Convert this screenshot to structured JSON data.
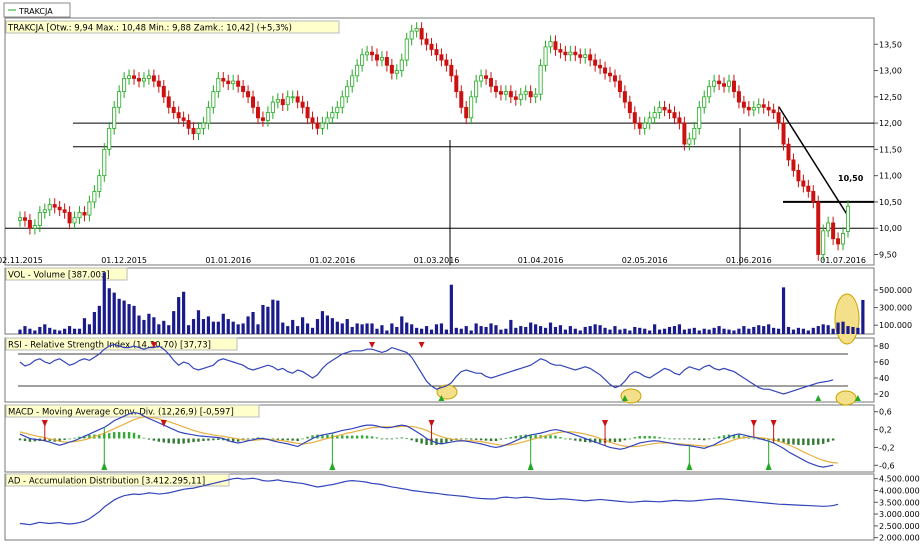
{
  "legend": {
    "label": "TRAKCJA"
  },
  "panels": {
    "price": {
      "title": "TRAKCJA [Otw.: 9,94  Max.: 10,48  Min.: 9,88  Zamk.: 10,42] (+5,3%)"
    },
    "volume": {
      "title": "VOL - Volume [387.003]"
    },
    "rsi": {
      "title": "RSI - Relative Strength Index (14,30,70) [37,73]"
    },
    "macd": {
      "title": "MACD - Moving Average Conv. Div. (12,26,9) [-0,597]"
    },
    "ad": {
      "title": "AD - Accumulation Distribution [3.412.295,11]"
    }
  },
  "annotation": {
    "price_label": "10,50"
  },
  "colors": {
    "up": "#22aa22",
    "down": "#cc1111",
    "volume": "#1a1a8c",
    "line": "#3344bb",
    "signal": "#e8b040",
    "highlight": "#f4e08a",
    "grid": "#cccccc"
  },
  "chart_data": [
    {
      "type": "candlestick",
      "name": "price",
      "x_ticks": [
        "02.11.2015",
        "01.12.2015",
        "01.01.2016",
        "01.02.2016",
        "01.03.2016",
        "01.04.2016",
        "02.05.2016",
        "01.06.2016",
        "01.07.2016"
      ],
      "y_ticks": [
        "9,50",
        "10,00",
        "10,50",
        "11,00",
        "11,50",
        "12,00",
        "12,50",
        "13,00",
        "13,50"
      ],
      "ylim": [
        9.3,
        14.0
      ],
      "horizontal_lines": [
        10.0,
        10.5,
        11.55,
        12.0
      ],
      "last": {
        "open": 9.94,
        "high": 10.48,
        "low": 9.88,
        "close": 10.42,
        "change": "+5,3%"
      },
      "closes": [
        10.2,
        10.15,
        10.0,
        10.05,
        10.3,
        10.35,
        10.45,
        10.4,
        10.35,
        10.3,
        10.1,
        10.2,
        10.3,
        10.25,
        10.5,
        10.7,
        11.0,
        11.5,
        11.9,
        12.3,
        12.6,
        12.85,
        12.9,
        12.85,
        12.8,
        12.85,
        12.9,
        12.8,
        12.7,
        12.5,
        12.3,
        12.2,
        12.1,
        12.05,
        11.9,
        11.8,
        11.9,
        12.0,
        12.3,
        12.6,
        12.85,
        12.8,
        12.75,
        12.8,
        12.7,
        12.6,
        12.5,
        12.3,
        12.1,
        12.05,
        12.2,
        12.4,
        12.45,
        12.35,
        12.5,
        12.5,
        12.4,
        12.3,
        12.1,
        12.0,
        11.9,
        12.0,
        12.1,
        12.2,
        12.3,
        12.5,
        12.7,
        12.9,
        13.1,
        13.3,
        13.35,
        13.3,
        13.2,
        13.25,
        13.1,
        12.95,
        13.0,
        13.2,
        13.6,
        13.75,
        13.8,
        13.6,
        13.5,
        13.4,
        13.3,
        13.2,
        13.1,
        12.9,
        12.6,
        12.3,
        12.1,
        12.5,
        12.8,
        12.9,
        12.85,
        12.7,
        12.6,
        12.55,
        12.6,
        12.5,
        12.45,
        12.55,
        12.6,
        12.5,
        12.55,
        13.1,
        13.45,
        13.55,
        13.4,
        13.35,
        13.3,
        13.35,
        13.3,
        13.25,
        13.3,
        13.2,
        13.1,
        13.05,
        12.95,
        12.9,
        12.8,
        12.6,
        12.4,
        12.2,
        12.0,
        11.9,
        12.0,
        12.1,
        12.2,
        12.3,
        12.25,
        12.2,
        12.1,
        12.0,
        11.6,
        11.7,
        11.9,
        12.3,
        12.5,
        12.7,
        12.8,
        12.75,
        12.7,
        12.8,
        12.6,
        12.4,
        12.3,
        12.25,
        12.3,
        12.35,
        12.3,
        12.25,
        12.2,
        12.0,
        11.6,
        11.3,
        11.1,
        10.9,
        10.8,
        10.7,
        10.5,
        9.5,
        9.95,
        10.1,
        9.8,
        9.7,
        9.9,
        10.42
      ]
    },
    {
      "type": "bar",
      "name": "volume",
      "y_ticks": [
        "100.000",
        "300.000",
        "500.000"
      ],
      "ylim": [
        0,
        750000
      ],
      "last_value": 387003,
      "values": [
        50000,
        90000,
        60000,
        40000,
        80000,
        110000,
        70000,
        50000,
        40000,
        60000,
        90000,
        60000,
        60000,
        180000,
        110000,
        250000,
        320000,
        700000,
        520000,
        470000,
        400000,
        380000,
        340000,
        320000,
        210000,
        160000,
        230000,
        190000,
        110000,
        150000,
        100000,
        260000,
        420000,
        480000,
        100000,
        170000,
        270000,
        170000,
        200000,
        140000,
        140000,
        230000,
        170000,
        140000,
        110000,
        120000,
        200000,
        250000,
        110000,
        330000,
        310000,
        390000,
        380000,
        130000,
        90000,
        160000,
        90000,
        190000,
        120000,
        70000,
        170000,
        260000,
        210000,
        180000,
        140000,
        120000,
        170000,
        80000,
        120000,
        110000,
        120000,
        120000,
        60000,
        100000,
        40000,
        120000,
        80000,
        200000,
        130000,
        110000,
        70000,
        60000,
        90000,
        50000,
        110000,
        120000,
        50000,
        560000,
        70000,
        60000,
        90000,
        40000,
        120000,
        90000,
        80000,
        120000,
        100000,
        50000,
        60000,
        160000,
        70000,
        90000,
        80000,
        130000,
        110000,
        90000,
        70000,
        130000,
        80000,
        100000,
        50000,
        90000,
        60000,
        40000,
        80000,
        90000,
        110000,
        100000,
        70000,
        50000,
        90000,
        50000,
        60000,
        40000,
        80000,
        70000,
        60000,
        40000,
        110000,
        50000,
        60000,
        80000,
        90000,
        110000,
        50000,
        60000,
        70000,
        40000,
        60000,
        50000,
        70000,
        90000,
        60000,
        50000,
        40000,
        60000,
        90000,
        60000,
        80000,
        100000,
        90000,
        110000,
        70000,
        60000,
        530000,
        80000,
        50000,
        70000,
        60000,
        40000,
        70000,
        90000,
        110000,
        100000,
        60000,
        130000,
        140000,
        90000,
        80000,
        70000,
        387003
      ]
    },
    {
      "type": "line",
      "name": "rsi",
      "y_ticks": [
        "20",
        "40",
        "60",
        "80"
      ],
      "ylim": [
        10,
        90
      ],
      "levels": [
        30,
        70
      ],
      "last_value": 37.73,
      "values": [
        60,
        55,
        57,
        62,
        64,
        60,
        58,
        62,
        64,
        60,
        56,
        58,
        62,
        64,
        62,
        66,
        70,
        76,
        80,
        82,
        80,
        78,
        78,
        80,
        78,
        76,
        78,
        78,
        80,
        76,
        70,
        62,
        56,
        60,
        58,
        52,
        50,
        52,
        54,
        56,
        62,
        64,
        62,
        60,
        58,
        56,
        52,
        50,
        52,
        54,
        56,
        54,
        50,
        52,
        48,
        46,
        50,
        48,
        44,
        40,
        44,
        52,
        58,
        62,
        66,
        70,
        72,
        74,
        74,
        74,
        76,
        76,
        74,
        72,
        74,
        78,
        76,
        74,
        72,
        66,
        56,
        46,
        36,
        30,
        26,
        28,
        30,
        34,
        42,
        48,
        50,
        48,
        46,
        46,
        42,
        40,
        42,
        44,
        46,
        48,
        50,
        52,
        54,
        56,
        60,
        64,
        62,
        58,
        56,
        56,
        54,
        52,
        50,
        52,
        54,
        52,
        48,
        44,
        38,
        32,
        28,
        30,
        36,
        44,
        48,
        46,
        42,
        40,
        44,
        48,
        52,
        50,
        46,
        44,
        50,
        54,
        52,
        50,
        54,
        56,
        52,
        50,
        52,
        50,
        48,
        44,
        40,
        36,
        32,
        28,
        26,
        26,
        24,
        22,
        20,
        22,
        24,
        26,
        28,
        30,
        32,
        34,
        35,
        36,
        37.73
      ],
      "buy_markers": [
        85,
        122,
        161,
        169
      ],
      "sell_markers": [
        27,
        71,
        81
      ]
    },
    {
      "type": "line",
      "name": "macd",
      "y_ticks": [
        "-0,6",
        "-0,2",
        "0,2",
        "0,6"
      ],
      "ylim": [
        -0.75,
        0.75
      ],
      "last_value": -0.597,
      "series": [
        {
          "values": [
            0.1,
            0.05,
            0.0,
            -0.02,
            -0.03,
            -0.05,
            -0.08,
            -0.12,
            -0.15,
            -0.12,
            -0.08,
            -0.05,
            0.0,
            0.05,
            0.1,
            0.15,
            0.2,
            0.25,
            0.32,
            0.4,
            0.45,
            0.5,
            0.55,
            0.58,
            0.56,
            0.5,
            0.45,
            0.4,
            0.35,
            0.3,
            0.25,
            0.2,
            0.15,
            0.12,
            0.1,
            0.08,
            0.06,
            0.05,
            0.04,
            0.03,
            0.02,
            0.0,
            -0.05,
            -0.08,
            -0.1,
            -0.08,
            -0.05,
            -0.03,
            0.0,
            0.0,
            -0.02,
            -0.05,
            -0.08,
            -0.1,
            -0.12,
            -0.15,
            -0.18,
            -0.12,
            -0.06,
            0.0,
            0.05,
            0.08,
            0.1,
            0.12,
            0.15,
            0.18,
            0.2,
            0.22,
            0.25,
            0.28,
            0.3,
            0.3,
            0.28,
            0.25,
            0.24,
            0.25,
            0.28,
            0.3,
            0.28,
            0.22,
            0.15,
            0.08,
            0.0,
            -0.05,
            -0.1,
            -0.12,
            -0.1,
            -0.08,
            -0.06,
            -0.05,
            -0.06,
            -0.08,
            -0.1,
            -0.12,
            -0.15,
            -0.18,
            -0.2,
            -0.18,
            -0.14,
            -0.1,
            -0.05,
            0.0,
            0.05,
            0.08,
            0.1,
            0.12,
            0.15,
            0.18,
            0.2,
            0.18,
            0.15,
            0.12,
            0.08,
            0.04,
            0.0,
            -0.04,
            -0.08,
            -0.12,
            -0.16,
            -0.2,
            -0.22,
            -0.24,
            -0.22,
            -0.18,
            -0.14,
            -0.1,
            -0.08,
            -0.06,
            -0.05,
            -0.06,
            -0.08,
            -0.1,
            -0.12,
            -0.14,
            -0.15,
            -0.16,
            -0.18,
            -0.2,
            -0.22,
            -0.18,
            -0.14,
            -0.08,
            -0.02,
            0.04,
            0.08,
            0.1,
            0.08,
            0.05,
            0.03,
            0.0,
            -0.03,
            -0.06,
            -0.1,
            -0.16,
            -0.22,
            -0.3,
            -0.36,
            -0.42,
            -0.48,
            -0.54,
            -0.58,
            -0.62,
            -0.64,
            -0.62,
            -0.597
          ]
        },
        {
          "values": [
            0.15,
            0.12,
            0.09,
            0.06,
            0.04,
            0.02,
            -0.01,
            -0.03,
            -0.06,
            -0.08,
            -0.08,
            -0.07,
            -0.05,
            -0.03,
            0.0,
            0.04,
            0.08,
            0.12,
            0.17,
            0.22,
            0.27,
            0.32,
            0.37,
            0.42,
            0.46,
            0.48,
            0.48,
            0.46,
            0.44,
            0.41,
            0.38,
            0.34,
            0.3,
            0.26,
            0.22,
            0.18,
            0.15,
            0.12,
            0.1,
            0.08,
            0.06,
            0.05,
            0.03,
            0.01,
            -0.01,
            -0.03,
            -0.04,
            -0.04,
            -0.03,
            -0.02,
            -0.02,
            -0.03,
            -0.04,
            -0.05,
            -0.07,
            -0.09,
            -0.11,
            -0.12,
            -0.11,
            -0.09,
            -0.06,
            -0.03,
            0.0,
            0.03,
            0.06,
            0.09,
            0.12,
            0.14,
            0.17,
            0.19,
            0.22,
            0.24,
            0.25,
            0.26,
            0.26,
            0.26,
            0.26,
            0.27,
            0.27,
            0.27,
            0.25,
            0.22,
            0.18,
            0.13,
            0.08,
            0.04,
            0.01,
            -0.01,
            -0.03,
            -0.04,
            -0.05,
            -0.05,
            -0.06,
            -0.07,
            -0.09,
            -0.11,
            -0.13,
            -0.15,
            -0.15,
            -0.14,
            -0.12,
            -0.09,
            -0.06,
            -0.03,
            0.0,
            0.03,
            0.06,
            0.09,
            0.12,
            0.14,
            0.15,
            0.15,
            0.14,
            0.12,
            0.1,
            0.07,
            0.04,
            0.0,
            -0.04,
            -0.08,
            -0.12,
            -0.15,
            -0.17,
            -0.18,
            -0.18,
            -0.17,
            -0.15,
            -0.13,
            -0.11,
            -0.1,
            -0.1,
            -0.1,
            -0.11,
            -0.12,
            -0.13,
            -0.14,
            -0.15,
            -0.16,
            -0.17,
            -0.17,
            -0.16,
            -0.14,
            -0.11,
            -0.07,
            -0.03,
            0.0,
            0.02,
            0.03,
            0.03,
            0.02,
            0.01,
            -0.01,
            -0.03,
            -0.06,
            -0.1,
            -0.14,
            -0.19,
            -0.24,
            -0.3,
            -0.35,
            -0.4,
            -0.45,
            -0.49,
            -0.52,
            -0.54,
            -0.55
          ]
        }
      ],
      "buy_markers": [
        17,
        63,
        103,
        135,
        151
      ],
      "sell_markers": [
        5,
        29,
        83,
        118,
        148,
        152
      ]
    },
    {
      "type": "line",
      "name": "ad",
      "y_ticks": [
        "2.000.000",
        "2.500.000",
        "3.000.000",
        "3.500.000",
        "4.000.000",
        "4.500.000"
      ],
      "ylim": [
        1900000,
        4700000
      ],
      "last_value": 3412295.11,
      "values": [
        2600000,
        2580000,
        2550000,
        2600000,
        2650000,
        2620000,
        2600000,
        2620000,
        2640000,
        2600000,
        2580000,
        2600000,
        2640000,
        2700000,
        2800000,
        2950000,
        3100000,
        3300000,
        3450000,
        3600000,
        3700000,
        3780000,
        3820000,
        3850000,
        3830000,
        3860000,
        3900000,
        3880000,
        3850000,
        3870000,
        3900000,
        3950000,
        4000000,
        4050000,
        4080000,
        4100000,
        4150000,
        4200000,
        4250000,
        4300000,
        4350000,
        4400000,
        4450000,
        4500000,
        4520000,
        4480000,
        4500000,
        4520000,
        4480000,
        4420000,
        4400000,
        4420000,
        4450000,
        4400000,
        4380000,
        4350000,
        4320000,
        4300000,
        4250000,
        4200000,
        4150000,
        4180000,
        4220000,
        4250000,
        4300000,
        4350000,
        4400000,
        4420000,
        4400000,
        4380000,
        4350000,
        4300000,
        4280000,
        4250000,
        4200000,
        4150000,
        4120000,
        4080000,
        4050000,
        4000000,
        3980000,
        3950000,
        3920000,
        3900000,
        3880000,
        3850000,
        3820000,
        3800000,
        3780000,
        3760000,
        3740000,
        3700000,
        3680000,
        3660000,
        3650000,
        3640000,
        3650000,
        3700000,
        3720000,
        3700000,
        3680000,
        3700000,
        3720000,
        3700000,
        3680000,
        3650000,
        3630000,
        3620000,
        3630000,
        3650000,
        3640000,
        3620000,
        3600000,
        3580000,
        3560000,
        3580000,
        3600000,
        3620000,
        3600000,
        3580000,
        3560000,
        3540000,
        3520000,
        3500000,
        3510000,
        3530000,
        3550000,
        3540000,
        3530000,
        3520000,
        3540000,
        3560000,
        3580000,
        3570000,
        3560000,
        3550000,
        3560000,
        3580000,
        3600000,
        3620000,
        3640000,
        3650000,
        3640000,
        3620000,
        3600000,
        3580000,
        3560000,
        3540000,
        3520000,
        3500000,
        3480000,
        3460000,
        3440000,
        3420000,
        3410000,
        3400000,
        3390000,
        3380000,
        3370000,
        3360000,
        3350000,
        3340000,
        3330000,
        3340000,
        3360000,
        3412295
      ]
    }
  ]
}
